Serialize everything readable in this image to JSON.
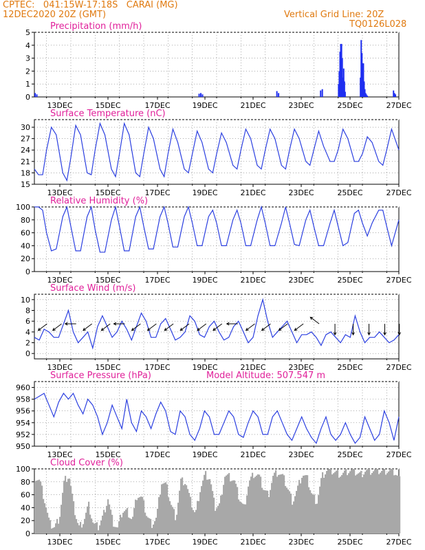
{
  "header": {
    "line1_left": "CPTEC:   041:15W-17:18S   CARAI (MG)",
    "line2_left": "12DEC2020 20Z (GMT)",
    "line1_right": "Vertical Grid Line: 20Z",
    "line2_right": "TQ0126L028"
  },
  "colors": {
    "header": "#e07a10",
    "panel_title": "#e0209a",
    "series": "#2b3fe0",
    "bars": "#1f2ff0",
    "cloud": "#a8a8a8",
    "arrows": "#000000"
  },
  "chart_data": [
    {
      "type": "bar",
      "title": "Precipitation (mm/h)",
      "xticks": [
        "13DEC",
        "15DEC",
        "17DEC",
        "19DEC",
        "21DEC",
        "23DEC",
        "25DEC",
        "27DEC"
      ],
      "xlim": [
        0,
        15
      ],
      "ylim": [
        0,
        5
      ],
      "yticks": [
        "0",
        "1",
        "2",
        "3",
        "4",
        "5"
      ],
      "grid": true,
      "x": [
        0.03,
        0.1,
        6.78,
        6.85,
        6.92,
        9.98,
        10.05,
        11.78,
        11.85,
        12.52,
        12.55,
        12.58,
        12.61,
        12.64,
        12.67,
        12.7,
        12.73,
        12.76,
        12.79,
        13.42,
        13.45,
        13.48,
        13.51,
        13.54,
        13.57,
        13.6,
        13.63,
        13.66,
        13.7,
        14.78,
        14.82,
        14.86
      ],
      "values": [
        0.3,
        0.2,
        0.25,
        0.3,
        0.2,
        0.45,
        0.3,
        0.5,
        0.6,
        1.0,
        2.0,
        3.5,
        4.1,
        4.1,
        3.0,
        1.5,
        2.2,
        1.2,
        0.4,
        1.5,
        4.4,
        3.4,
        2.6,
        2.6,
        1.2,
        0.6,
        0.3,
        0.2,
        0.1,
        0.5,
        0.3,
        0.2
      ]
    },
    {
      "type": "line",
      "title": "Surface Temperature (nC)",
      "xticks": [
        "13DEC",
        "15DEC",
        "17DEC",
        "19DEC",
        "21DEC",
        "23DEC",
        "25DEC",
        "27DEC"
      ],
      "xlim": [
        0,
        15
      ],
      "ylim": [
        15,
        32
      ],
      "yticks": [
        "15",
        "18",
        "21",
        "24",
        "27",
        "30"
      ],
      "grid": true,
      "x": [
        0,
        0.17,
        0.34,
        0.5,
        0.7,
        0.9,
        1.17,
        1.34,
        1.5,
        1.7,
        1.9,
        2.17,
        2.34,
        2.5,
        2.7,
        2.9,
        3.17,
        3.34,
        3.5,
        3.7,
        3.9,
        4.17,
        4.34,
        4.5,
        4.7,
        4.9,
        5.17,
        5.34,
        5.5,
        5.7,
        5.9,
        6.17,
        6.34,
        6.5,
        6.7,
        6.9,
        7.17,
        7.34,
        7.5,
        7.7,
        7.9,
        8.17,
        8.34,
        8.5,
        8.7,
        8.9,
        9.17,
        9.34,
        9.5,
        9.7,
        9.9,
        10.17,
        10.34,
        10.5,
        10.7,
        10.9,
        11.17,
        11.34,
        11.5,
        11.7,
        11.9,
        12.17,
        12.34,
        12.5,
        12.7,
        12.9,
        13.17,
        13.34,
        13.5,
        13.7,
        13.9,
        14.17,
        14.34,
        14.5,
        14.7,
        15
      ],
      "values": [
        19,
        17.5,
        17.5,
        24,
        30,
        28,
        18,
        16,
        22,
        30.5,
        28,
        18,
        17.5,
        24,
        31,
        28,
        19,
        17,
        23,
        31,
        28,
        18,
        17,
        23,
        30,
        27,
        19,
        17,
        23,
        29.5,
        26,
        19,
        18,
        23,
        29,
        26,
        19,
        18,
        23,
        28.5,
        26,
        20,
        19,
        24,
        29.5,
        27,
        20,
        19,
        24,
        29.5,
        27,
        20,
        19,
        24,
        29.5,
        27,
        21,
        20,
        24,
        29,
        25,
        21,
        21,
        24,
        29.5,
        27,
        21,
        21,
        23,
        27.5,
        26,
        21,
        20,
        24,
        29.5,
        24
      ]
    },
    {
      "type": "line",
      "title": "Relative Humidity (%)",
      "xticks": [
        "13DEC",
        "15DEC",
        "17DEC",
        "19DEC",
        "21DEC",
        "23DEC",
        "25DEC",
        "27DEC"
      ],
      "xlim": [
        0,
        15
      ],
      "ylim": [
        0,
        100
      ],
      "yticks": [
        "0",
        "20",
        "40",
        "60",
        "80",
        "100"
      ],
      "grid": true,
      "x": [
        0,
        0.17,
        0.34,
        0.5,
        0.7,
        0.9,
        1.17,
        1.34,
        1.5,
        1.7,
        1.9,
        2.17,
        2.34,
        2.5,
        2.7,
        2.9,
        3.17,
        3.34,
        3.5,
        3.7,
        3.9,
        4.17,
        4.34,
        4.5,
        4.7,
        4.9,
        5.17,
        5.34,
        5.5,
        5.7,
        5.9,
        6.17,
        6.34,
        6.5,
        6.7,
        6.9,
        7.17,
        7.34,
        7.5,
        7.7,
        7.9,
        8.17,
        8.34,
        8.5,
        8.7,
        8.9,
        9.17,
        9.34,
        9.5,
        9.7,
        9.9,
        10.17,
        10.34,
        10.5,
        10.7,
        10.9,
        11.17,
        11.34,
        11.5,
        11.7,
        11.9,
        12.17,
        12.34,
        12.5,
        12.7,
        12.9,
        13.17,
        13.34,
        13.5,
        13.7,
        13.9,
        14.17,
        14.34,
        14.5,
        14.7,
        15
      ],
      "values": [
        100,
        100,
        95,
        60,
        32,
        35,
        85,
        100,
        70,
        32,
        32,
        85,
        100,
        65,
        30,
        30,
        80,
        100,
        70,
        32,
        32,
        85,
        100,
        70,
        35,
        35,
        85,
        100,
        75,
        38,
        38,
        85,
        100,
        75,
        40,
        40,
        85,
        95,
        75,
        40,
        40,
        80,
        95,
        75,
        40,
        40,
        80,
        100,
        75,
        40,
        40,
        75,
        100,
        75,
        42,
        40,
        80,
        95,
        70,
        40,
        40,
        75,
        95,
        70,
        40,
        45,
        90,
        95,
        75,
        55,
        75,
        95,
        95,
        70,
        40,
        80
      ]
    },
    {
      "type": "line",
      "title": "Surface Wind (m/s)",
      "xticks": [
        "13DEC",
        "15DEC",
        "17DEC",
        "19DEC",
        "21DEC",
        "23DEC",
        "25DEC",
        "27DEC"
      ],
      "xlim": [
        0,
        15
      ],
      "ylim": [
        -1,
        11
      ],
      "yticks": [
        "0",
        "2",
        "4",
        "6",
        "8",
        "10"
      ],
      "grid": true,
      "x": [
        0,
        0.2,
        0.4,
        0.6,
        0.8,
        1.0,
        1.2,
        1.4,
        1.6,
        1.8,
        2.0,
        2.2,
        2.4,
        2.6,
        2.8,
        3.0,
        3.2,
        3.4,
        3.6,
        3.8,
        4.0,
        4.2,
        4.4,
        4.6,
        4.8,
        5.0,
        5.2,
        5.4,
        5.6,
        5.8,
        6.0,
        6.2,
        6.4,
        6.6,
        6.8,
        7.0,
        7.2,
        7.4,
        7.6,
        7.8,
        8.0,
        8.2,
        8.4,
        8.6,
        8.8,
        9.0,
        9.2,
        9.4,
        9.6,
        9.8,
        10.0,
        10.2,
        10.4,
        10.6,
        10.8,
        11.0,
        11.2,
        11.4,
        11.6,
        11.8,
        12.0,
        12.2,
        12.4,
        12.6,
        12.8,
        13.0,
        13.2,
        13.4,
        13.6,
        13.8,
        14.0,
        14.2,
        14.4,
        14.6,
        14.8,
        15.0
      ],
      "values": [
        3,
        2.5,
        4.5,
        4,
        3,
        3,
        5.5,
        8,
        4,
        2,
        3,
        4,
        1,
        5,
        7,
        5,
        3,
        4,
        6,
        4.5,
        2.5,
        5,
        7.5,
        6,
        3,
        3,
        5.5,
        6.5,
        4.5,
        2.5,
        3,
        4,
        7,
        6,
        3.5,
        3,
        5,
        6,
        4,
        2.5,
        3,
        5,
        6,
        4,
        2,
        3,
        7,
        10,
        6,
        3,
        4,
        5,
        6,
        4,
        2,
        3.5,
        3.5,
        4,
        3,
        1.5,
        3.5,
        4,
        3,
        2,
        3.5,
        3,
        7,
        4,
        2,
        3,
        3,
        4,
        3,
        2,
        2.5,
        3.5
      ],
      "arrows": [
        {
          "x": 0.35,
          "dir": "SW"
        },
        {
          "x": 0.95,
          "dir": "SW"
        },
        {
          "x": 1.55,
          "dir": "W"
        },
        {
          "x": 2.2,
          "dir": "SW"
        },
        {
          "x": 2.95,
          "dir": "SW"
        },
        {
          "x": 3.55,
          "dir": "W"
        },
        {
          "x": 4.2,
          "dir": "SW"
        },
        {
          "x": 4.85,
          "dir": "SW"
        },
        {
          "x": 5.55,
          "dir": "SW"
        },
        {
          "x": 6.2,
          "dir": "SW"
        },
        {
          "x": 6.9,
          "dir": "SW"
        },
        {
          "x": 7.55,
          "dir": "SW"
        },
        {
          "x": 8.2,
          "dir": "W"
        },
        {
          "x": 8.9,
          "dir": "SW"
        },
        {
          "x": 9.55,
          "dir": "SW"
        },
        {
          "x": 10.25,
          "dir": "SW"
        },
        {
          "x": 10.9,
          "dir": "SW"
        },
        {
          "x": 11.55,
          "dir": "NW"
        },
        {
          "x": 12.2,
          "dir": "S"
        },
        {
          "x": 12.95,
          "dir": "S"
        },
        {
          "x": 13.6,
          "dir": "S"
        },
        {
          "x": 14.25,
          "dir": "S"
        },
        {
          "x": 14.85,
          "dir": "S"
        }
      ]
    },
    {
      "type": "line",
      "title": "Surface Pressure (hPa)",
      "subtitle": "Model Altitude: 507.547 m",
      "xticks": [
        "13DEC",
        "15DEC",
        "17DEC",
        "19DEC",
        "21DEC",
        "23DEC",
        "25DEC",
        "27DEC"
      ],
      "xlim": [
        0,
        15
      ],
      "ylim": [
        950,
        961
      ],
      "yticks": [
        "950",
        "952",
        "954",
        "956",
        "958",
        "960"
      ],
      "grid": true,
      "x": [
        0,
        0.2,
        0.4,
        0.6,
        0.8,
        1.0,
        1.2,
        1.4,
        1.6,
        1.8,
        2.0,
        2.2,
        2.4,
        2.6,
        2.8,
        3.0,
        3.2,
        3.4,
        3.6,
        3.8,
        4.0,
        4.2,
        4.4,
        4.6,
        4.8,
        5.0,
        5.2,
        5.4,
        5.6,
        5.8,
        6.0,
        6.2,
        6.4,
        6.6,
        6.8,
        7.0,
        7.2,
        7.4,
        7.6,
        7.8,
        8.0,
        8.2,
        8.4,
        8.6,
        8.8,
        9.0,
        9.2,
        9.4,
        9.6,
        9.8,
        10.0,
        10.2,
        10.4,
        10.6,
        10.8,
        11.0,
        11.2,
        11.4,
        11.6,
        11.8,
        12.0,
        12.2,
        12.4,
        12.6,
        12.8,
        13.0,
        13.2,
        13.4,
        13.6,
        13.8,
        14.0,
        14.2,
        14.4,
        14.6,
        14.8,
        15.0
      ],
      "values": [
        958,
        958.5,
        959,
        957,
        955,
        957.5,
        959,
        958,
        959,
        957,
        955.5,
        958,
        957,
        955,
        952,
        954,
        957,
        955,
        953,
        958,
        954,
        952.5,
        956,
        955,
        953,
        955.5,
        957.5,
        956,
        952.5,
        952,
        956,
        955,
        952,
        951,
        953,
        956,
        955,
        952,
        952,
        954,
        956,
        955,
        952,
        951.5,
        954,
        956,
        955,
        952,
        952,
        955,
        956,
        954,
        952,
        951,
        953,
        955,
        953,
        951.5,
        950.5,
        953,
        955,
        952,
        951,
        952,
        954,
        952,
        950.5,
        951.5,
        955,
        953,
        951,
        952,
        956,
        954,
        951,
        955
      ]
    },
    {
      "type": "area",
      "title": "Cloud Cover (%)",
      "xticks": [
        "13DEC",
        "15DEC",
        "17DEC",
        "19DEC",
        "21DEC",
        "23DEC",
        "25DEC",
        "27DEC"
      ],
      "xlim": [
        0,
        15
      ],
      "ylim": [
        0,
        100
      ],
      "yticks": [
        "0",
        "20",
        "40",
        "60",
        "80",
        "100"
      ],
      "grid": true,
      "x": [
        0,
        0.2,
        0.4,
        0.6,
        0.8,
        1.0,
        1.2,
        1.4,
        1.6,
        1.8,
        2.0,
        2.2,
        2.4,
        2.6,
        2.8,
        3.0,
        3.2,
        3.4,
        3.6,
        3.8,
        4.0,
        4.2,
        4.4,
        4.6,
        4.8,
        5.0,
        5.2,
        5.4,
        5.6,
        5.8,
        6.0,
        6.2,
        6.4,
        6.6,
        6.8,
        7.0,
        7.2,
        7.4,
        7.6,
        7.8,
        8.0,
        8.2,
        8.4,
        8.6,
        8.8,
        9.0,
        9.2,
        9.4,
        9.6,
        9.8,
        10.0,
        10.2,
        10.4,
        10.6,
        10.8,
        11.0,
        11.2,
        11.4,
        11.6,
        11.8,
        12.0,
        12.2,
        12.4,
        12.6,
        12.8,
        13.0,
        13.2,
        13.4,
        13.6,
        13.8,
        14.0,
        14.2,
        14.4,
        14.6,
        14.8,
        15.0
      ],
      "values": [
        88,
        82,
        50,
        15,
        10,
        25,
        82,
        90,
        40,
        10,
        20,
        45,
        15,
        10,
        28,
        55,
        18,
        8,
        35,
        35,
        22,
        60,
        55,
        28,
        15,
        25,
        80,
        75,
        45,
        25,
        82,
        80,
        50,
        30,
        70,
        92,
        85,
        40,
        45,
        90,
        88,
        82,
        55,
        40,
        80,
        92,
        90,
        70,
        60,
        90,
        95,
        88,
        70,
        50,
        70,
        92,
        85,
        60,
        50,
        88,
        98,
        97,
        95,
        92,
        96,
        98,
        95,
        92,
        98,
        97,
        98,
        97,
        98,
        98,
        96,
        85
      ]
    }
  ]
}
